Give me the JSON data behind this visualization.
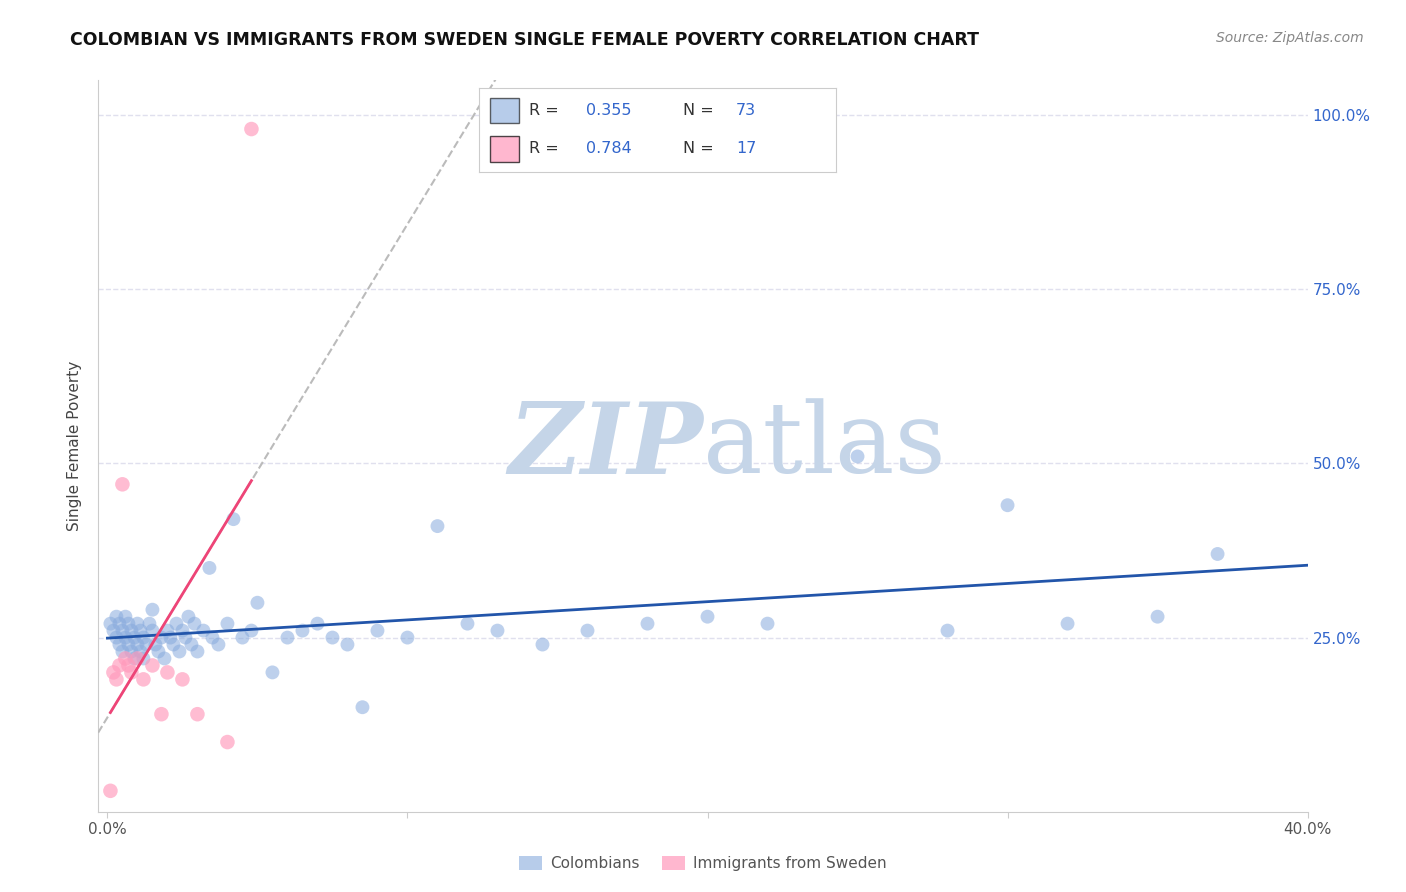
{
  "title": "COLOMBIAN VS IMMIGRANTS FROM SWEDEN SINGLE FEMALE POVERTY CORRELATION CHART",
  "source": "Source: ZipAtlas.com",
  "ylabel": "Single Female Poverty",
  "x_min": 0.0,
  "x_max": 0.4,
  "y_min": 0.0,
  "y_max": 1.05,
  "colombian_R": 0.355,
  "colombian_N": 73,
  "sweden_R": 0.784,
  "sweden_N": 17,
  "color_colombian": "#88AADD",
  "color_sweden": "#FF99BB",
  "color_line_colombian": "#2255AA",
  "color_line_sweden": "#EE4477",
  "color_label": "#3366CC",
  "watermark_zip_color": "#C5D5E8",
  "watermark_atlas_color": "#C5D5E8",
  "background_color": "#FFFFFF",
  "grid_color": "#E0E0EE",
  "colombian_x": [
    0.001,
    0.002,
    0.003,
    0.003,
    0.004,
    0.004,
    0.005,
    0.005,
    0.006,
    0.006,
    0.007,
    0.007,
    0.008,
    0.008,
    0.009,
    0.009,
    0.01,
    0.01,
    0.011,
    0.011,
    0.012,
    0.012,
    0.013,
    0.014,
    0.015,
    0.015,
    0.016,
    0.017,
    0.018,
    0.019,
    0.02,
    0.021,
    0.022,
    0.023,
    0.024,
    0.025,
    0.026,
    0.027,
    0.028,
    0.029,
    0.03,
    0.032,
    0.034,
    0.035,
    0.037,
    0.04,
    0.042,
    0.045,
    0.048,
    0.05,
    0.055,
    0.06,
    0.065,
    0.07,
    0.075,
    0.08,
    0.085,
    0.09,
    0.1,
    0.11,
    0.12,
    0.13,
    0.145,
    0.16,
    0.18,
    0.2,
    0.22,
    0.25,
    0.28,
    0.3,
    0.32,
    0.35,
    0.37
  ],
  "colombian_y": [
    0.27,
    0.26,
    0.25,
    0.28,
    0.24,
    0.27,
    0.23,
    0.26,
    0.25,
    0.28,
    0.24,
    0.27,
    0.23,
    0.26,
    0.22,
    0.25,
    0.24,
    0.27,
    0.23,
    0.26,
    0.22,
    0.25,
    0.24,
    0.27,
    0.26,
    0.29,
    0.24,
    0.23,
    0.25,
    0.22,
    0.26,
    0.25,
    0.24,
    0.27,
    0.23,
    0.26,
    0.25,
    0.28,
    0.24,
    0.27,
    0.23,
    0.26,
    0.35,
    0.25,
    0.24,
    0.27,
    0.42,
    0.25,
    0.26,
    0.3,
    0.2,
    0.25,
    0.26,
    0.27,
    0.25,
    0.24,
    0.15,
    0.26,
    0.25,
    0.41,
    0.27,
    0.26,
    0.24,
    0.26,
    0.27,
    0.28,
    0.27,
    0.51,
    0.26,
    0.44,
    0.27,
    0.28,
    0.37
  ],
  "sweden_x": [
    0.001,
    0.002,
    0.003,
    0.004,
    0.005,
    0.006,
    0.007,
    0.008,
    0.01,
    0.012,
    0.015,
    0.018,
    0.02,
    0.025,
    0.03,
    0.04,
    0.048
  ],
  "sweden_y": [
    0.03,
    0.2,
    0.19,
    0.21,
    0.47,
    0.22,
    0.21,
    0.2,
    0.22,
    0.19,
    0.21,
    0.14,
    0.2,
    0.19,
    0.14,
    0.1,
    0.98
  ]
}
